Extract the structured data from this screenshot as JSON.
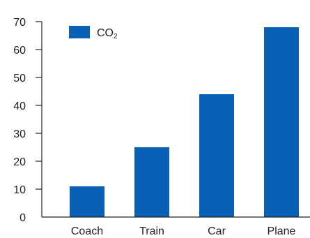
{
  "chart_data": {
    "type": "bar",
    "categories": [
      "Coach",
      "Train",
      "Car",
      "Plane"
    ],
    "series": [
      {
        "name": "CO2",
        "values": [
          11,
          25,
          44,
          68
        ],
        "color": "#0a60b4"
      }
    ],
    "y_ticks": [
      0,
      10,
      20,
      30,
      40,
      50,
      60,
      70
    ],
    "ylim": [
      0,
      70
    ],
    "grid": false,
    "legend": {
      "label_main": "CO",
      "label_sub": "2",
      "position": "top-left"
    },
    "title": "",
    "xlabel": "",
    "ylabel": ""
  }
}
